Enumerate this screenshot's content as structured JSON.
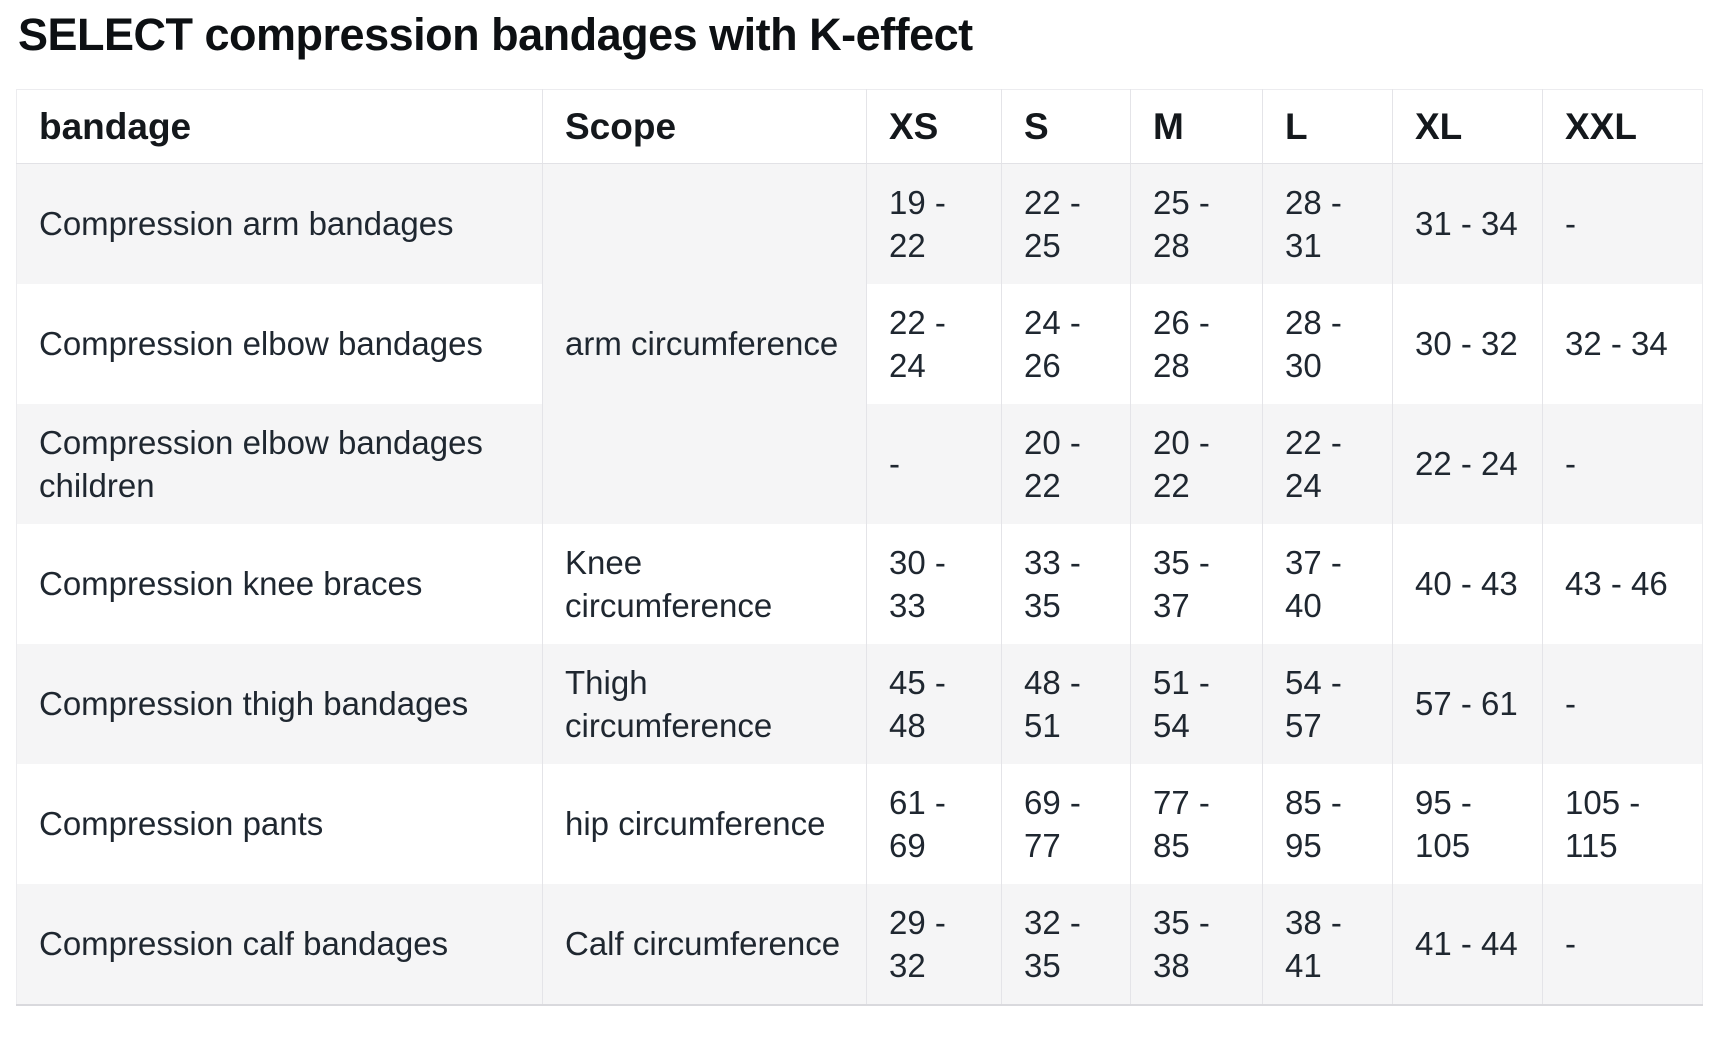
{
  "page": {
    "title": "SELECT compression bandages with K-effect"
  },
  "colors": {
    "row_shade": "#f5f5f6",
    "cell_border": "#e4e4e8",
    "table_bottom_border": "#d9d9dd",
    "text": "#1f2730",
    "title_text": "#0d1013"
  },
  "table": {
    "columns": [
      {
        "key": "bandage",
        "label": "bandage"
      },
      {
        "key": "scope",
        "label": "Scope"
      },
      {
        "key": "xs",
        "label": "XS"
      },
      {
        "key": "s",
        "label": "S"
      },
      {
        "key": "m",
        "label": "M"
      },
      {
        "key": "l",
        "label": "L"
      },
      {
        "key": "xl",
        "label": "XL"
      },
      {
        "key": "xxl",
        "label": "XXL"
      }
    ],
    "rows": [
      {
        "bandage": "Compression arm bandages",
        "scope": "arm circumference",
        "scope_rowspan": 3,
        "sizes": [
          "19 - 22",
          "22 - 25",
          "25 - 28",
          "28 - 31",
          "31 - 34",
          "-"
        ]
      },
      {
        "bandage": "Compression elbow bandages",
        "sizes": [
          "22 - 24",
          "24 - 26",
          "26 - 28",
          "28 - 30",
          "30 - 32",
          "32 - 34"
        ]
      },
      {
        "bandage": "Compression elbow bandages children",
        "sizes": [
          "-",
          "20 - 22",
          "20 - 22",
          "22 - 24",
          "22 - 24",
          "-"
        ]
      },
      {
        "bandage": "Compression knee braces",
        "scope": "Knee circumference",
        "sizes": [
          "30 - 33",
          "33 - 35",
          "35 - 37",
          "37 - 40",
          "40 - 43",
          "43 - 46"
        ]
      },
      {
        "bandage": "Compression thigh bandages",
        "scope": "Thigh circumference",
        "sizes": [
          "45 - 48",
          "48 - 51",
          "51 - 54",
          "54 - 57",
          "57 - 61",
          "-"
        ]
      },
      {
        "bandage": "Compression pants",
        "scope": "hip circumference",
        "sizes": [
          "61 - 69",
          "69 - 77",
          "77 - 85",
          "85 - 95",
          "95 - 105",
          "105 - 115"
        ]
      },
      {
        "bandage": "Compression calf bandages",
        "scope": "Calf circumference",
        "sizes": [
          "29 - 32",
          "32 - 35",
          "35 - 38",
          "38 - 41",
          "41 - 44",
          "-"
        ]
      }
    ]
  }
}
